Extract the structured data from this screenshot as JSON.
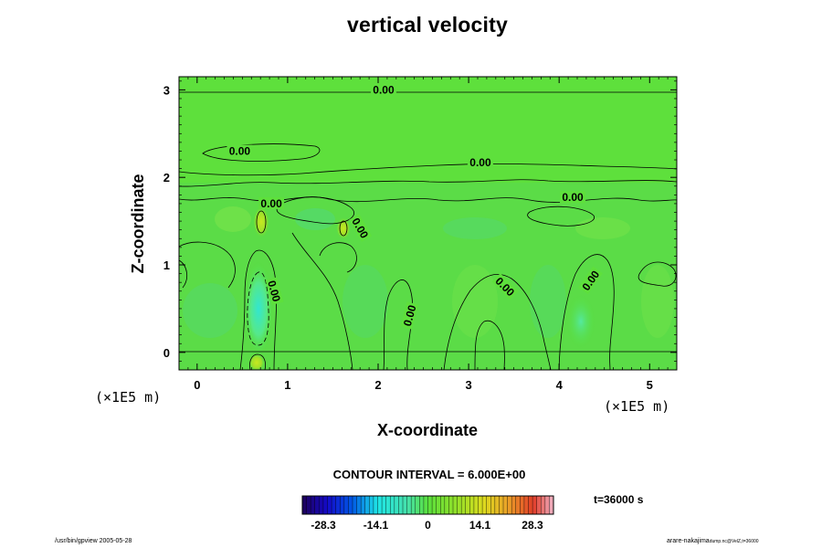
{
  "chart_data": {
    "type": "heatmap",
    "title": "vertical velocity",
    "xlabel": "X-coordinate",
    "ylabel": "Z-coordinate",
    "x_unit": "(×1E5 m)",
    "y_unit": "(×1E5 m)",
    "xlim": [
      -0.2,
      5.3
    ],
    "ylim": [
      -0.2,
      3.15
    ],
    "x_ticks": [
      "0",
      "1",
      "2",
      "3",
      "4",
      "5"
    ],
    "y_ticks": [
      "0",
      "1",
      "2",
      "3"
    ],
    "contour_interval_text": "CONTOUR INTERVAL = 6.000E+00",
    "contour_labels": [
      {
        "text": "0.00",
        "x": 2.06,
        "z": 3.0,
        "angle": 0
      },
      {
        "text": "0.00",
        "x": 0.47,
        "z": 2.3,
        "angle": 0
      },
      {
        "text": "0.00",
        "x": 3.13,
        "z": 2.17,
        "angle": 0
      },
      {
        "text": "0.00",
        "x": 4.15,
        "z": 1.77,
        "angle": 0
      },
      {
        "text": "0.00",
        "x": 0.82,
        "z": 1.7,
        "angle": 0
      },
      {
        "text": "0.00",
        "x": 1.8,
        "z": 1.42,
        "angle": 60
      },
      {
        "text": "0.00",
        "x": 0.85,
        "z": 0.7,
        "angle": 75
      },
      {
        "text": "0.00",
        "x": 3.4,
        "z": 0.75,
        "angle": 45
      },
      {
        "text": "0.00",
        "x": 4.35,
        "z": 0.82,
        "angle": -55
      },
      {
        "text": "0.00",
        "x": 2.35,
        "z": 0.42,
        "angle": -75
      }
    ],
    "features": [
      {
        "sign": "negative",
        "x": 0.68,
        "z": 0.5,
        "value": -12
      },
      {
        "sign": "positive",
        "x": 0.72,
        "z": 1.52,
        "value": 8
      },
      {
        "sign": "positive",
        "x": 1.58,
        "z": 1.42,
        "value": 8
      },
      {
        "sign": "positive",
        "x": 0.65,
        "z": -0.13,
        "value": 8
      },
      {
        "sign": "negative",
        "x": 4.25,
        "z": 0.35,
        "value": -6
      }
    ],
    "colorbar": {
      "min": -34,
      "max": 34,
      "ticks": [
        "-28.3",
        "-14.1",
        "0",
        "14.1",
        "28.3"
      ],
      "tick_values": [
        -28.3,
        -14.1,
        0,
        14.1,
        28.3
      ]
    },
    "time_label": "t=36000 s"
  },
  "footer": {
    "left": "/usr/bin/gpview 2005-05-28",
    "right": "arare-nakajima",
    "right_sub": "dump.nc@VelZ,t=36000"
  }
}
